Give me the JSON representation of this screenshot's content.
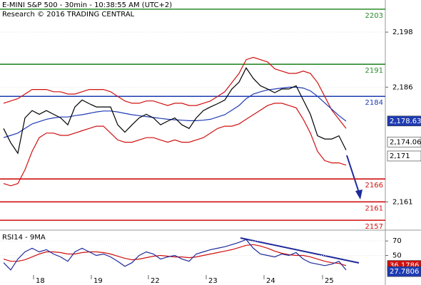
{
  "chart_data": [
    {
      "type": "line",
      "title": "E-MINI S&P 500 - 30min - 10:38:55 AM (UTC+2)",
      "subtitle": "Research © 2016 TRADING CENTRAL",
      "x": [
        0,
        1,
        2,
        3,
        4,
        5,
        6,
        7,
        8,
        9,
        10,
        11,
        12,
        13,
        14,
        15,
        16,
        17,
        18,
        19,
        20,
        21,
        22,
        23,
        24,
        25,
        26,
        27,
        28,
        29,
        30,
        31,
        32,
        33,
        34,
        35,
        36,
        37,
        38,
        39,
        40,
        41,
        42,
        43,
        44,
        45,
        46,
        47,
        48
      ],
      "xlim": [
        -0.5,
        53.5
      ],
      "ylim": [
        2155,
        2205
      ],
      "yticks": [
        {
          "value": 2161,
          "label": "2,161"
        },
        {
          "value": 2186,
          "label": "2,186"
        },
        {
          "value": 2198,
          "label": "2,198"
        }
      ],
      "series": [
        {
          "color": "#d01010",
          "values": [
            2182.5,
            2183,
            2183.5,
            2184.5,
            2185.5,
            2185.5,
            2185.5,
            2185,
            2185,
            2184.5,
            2184.5,
            2185,
            2185.5,
            2185.5,
            2185.5,
            2185,
            2184,
            2183,
            2182.5,
            2182.5,
            2183,
            2183,
            2182.5,
            2182,
            2182.5,
            2182.5,
            2182,
            2182,
            2182.5,
            2183,
            2184,
            2185,
            2187,
            2189,
            2192,
            2192.5,
            2192,
            2191.5,
            2190,
            2189.5,
            2189,
            2189,
            2189.5,
            2189,
            2187,
            2184,
            2181,
            2179,
            2177
          ]
        },
        {
          "color": "#d01010",
          "values": [
            2165,
            2164.5,
            2165,
            2168,
            2172,
            2175,
            2176,
            2176,
            2175.5,
            2175.5,
            2176,
            2176.5,
            2177,
            2177.5,
            2177.5,
            2176,
            2174.5,
            2174,
            2174,
            2174.5,
            2175,
            2175,
            2174.5,
            2174,
            2174.5,
            2174,
            2174,
            2174.5,
            2175,
            2176,
            2177,
            2177.5,
            2177.5,
            2178,
            2179,
            2180,
            2181,
            2182,
            2182.5,
            2182.5,
            2182,
            2181.5,
            2179,
            2176,
            2172,
            2170,
            2169.5,
            2169.5,
            2169
          ]
        },
        {
          "color": "#1f3bb3",
          "values": [
            2175,
            2175.5,
            2176,
            2177,
            2178,
            2178.5,
            2179,
            2179.3,
            2179.5,
            2179.5,
            2179.8,
            2180,
            2180.3,
            2180.6,
            2180.8,
            2180.8,
            2180.6,
            2180.3,
            2180,
            2179.8,
            2179.6,
            2179.4,
            2179.2,
            2179,
            2178.9,
            2178.8,
            2178.7,
            2178.7,
            2178.8,
            2179,
            2179.5,
            2180,
            2181,
            2182,
            2183.5,
            2184.5,
            2185,
            2185.4,
            2185.6,
            2185.8,
            2186,
            2186,
            2185.8,
            2185.2,
            2184,
            2182.6,
            2181.2,
            2179.8,
            2178.6
          ]
        },
        {
          "color": "#000000",
          "values": [
            2177,
            2173.9,
            2171.6,
            2179.3,
            2180.9,
            2180.1,
            2180.9,
            2180.1,
            2179.3,
            2177.8,
            2181.7,
            2183.2,
            2182.4,
            2181.7,
            2181.7,
            2181.7,
            2177.8,
            2176.2,
            2177.8,
            2179.3,
            2180.1,
            2179.3,
            2177.8,
            2178.6,
            2179.3,
            2177.8,
            2177,
            2179.3,
            2180.9,
            2181.7,
            2182.4,
            2183.2,
            2185.6,
            2187.1,
            2190.2,
            2187.9,
            2186.3,
            2185.6,
            2184.8,
            2185.6,
            2185.6,
            2186.3,
            2183.2,
            2180.1,
            2175.4,
            2174.7,
            2174.7,
            2175.4,
            2172.3
          ]
        }
      ],
      "levels": [
        {
          "value": 2203,
          "color": "#2a8a2a"
        },
        {
          "value": 2191,
          "color": "#2a8a2a"
        },
        {
          "value": 2184,
          "color": "#1f3bb3"
        },
        {
          "value": 2166,
          "color": "#d01010"
        },
        {
          "value": 2161,
          "color": "#d01010"
        },
        {
          "value": 2157,
          "color": "#d01010"
        }
      ],
      "price_tags": [
        {
          "value": 2178.63,
          "label": "2,178.63",
          "color": "#1f3bb3"
        },
        {
          "value": 2174.06,
          "label": "2,174.06",
          "color": "#ffffff"
        },
        {
          "value": 2171,
          "label": "2,171",
          "color": "#ffffff"
        }
      ]
    },
    {
      "type": "line",
      "title": "RSI14 - 9MA",
      "x": [
        0,
        1,
        2,
        3,
        4,
        5,
        6,
        7,
        8,
        9,
        10,
        11,
        12,
        13,
        14,
        15,
        16,
        17,
        18,
        19,
        20,
        21,
        22,
        23,
        24,
        25,
        26,
        27,
        28,
        29,
        30,
        31,
        32,
        33,
        34,
        35,
        36,
        37,
        38,
        39,
        40,
        41,
        42,
        43,
        44,
        45,
        46,
        47,
        48
      ],
      "xlim": [
        -0.5,
        53.5
      ],
      "ylim": [
        23,
        82
      ],
      "yticks": [
        50,
        70
      ],
      "xticks": [
        {
          "value": 4.2,
          "label": "18"
        },
        {
          "value": 12.3,
          "label": "19"
        },
        {
          "value": 20.3,
          "label": "22"
        },
        {
          "value": 28.4,
          "label": "23"
        },
        {
          "value": 36.5,
          "label": "24"
        },
        {
          "value": 44.7,
          "label": "25"
        }
      ],
      "series": [
        {
          "color": "#d01010",
          "values": [
            45,
            42,
            42,
            44,
            48,
            52,
            55,
            55,
            54,
            52,
            52,
            54,
            55,
            55,
            54,
            52,
            49,
            46,
            44,
            45,
            47,
            49,
            50,
            49,
            48,
            48,
            47,
            48,
            50,
            52,
            54,
            56,
            58,
            61,
            64,
            65,
            63,
            60,
            56,
            53,
            51,
            50,
            50,
            48,
            45,
            42,
            40,
            39,
            36
          ]
        },
        {
          "color": "#1f2a9a",
          "values": [
            40,
            30,
            45,
            55,
            60,
            55,
            58,
            52,
            48,
            42,
            55,
            60,
            55,
            50,
            52,
            48,
            42,
            35,
            40,
            50,
            55,
            52,
            45,
            48,
            50,
            45,
            42,
            52,
            55,
            58,
            60,
            62,
            65,
            68,
            72,
            60,
            52,
            50,
            48,
            52,
            50,
            54,
            45,
            40,
            38,
            36,
            38,
            42,
            30
          ]
        }
      ],
      "price_tags": [
        {
          "value": 36.1786,
          "label": "36.1786",
          "color": "#d01010"
        },
        {
          "value": 27.7806,
          "label": "27.7806",
          "color": "#1f3bb3"
        }
      ]
    }
  ]
}
